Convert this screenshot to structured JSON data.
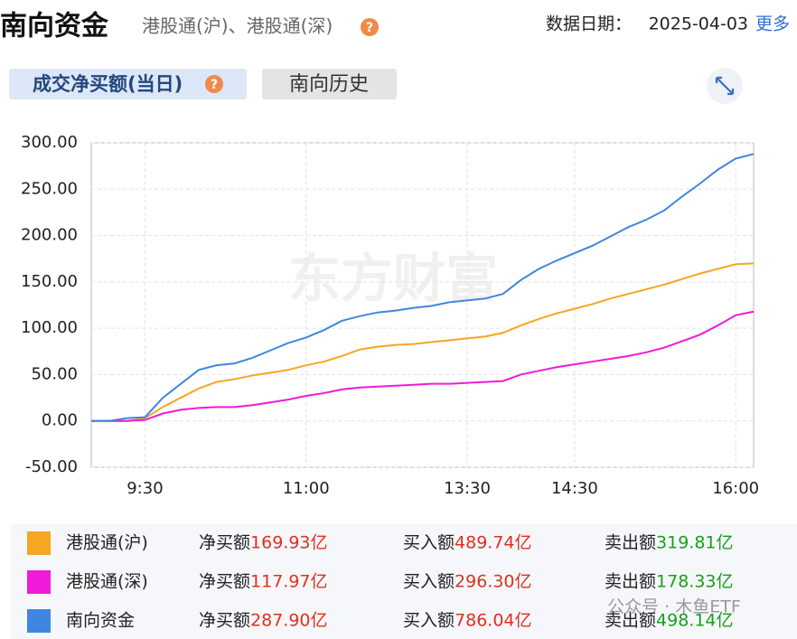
{
  "chart_data": {
    "type": "line",
    "title": "南向资金",
    "subtitle": "港股通(沪)、港股通(深)",
    "date_label": "数据日期：",
    "date": "2025-04-03",
    "more": "更多",
    "tabs": [
      "成交净买额(当日)",
      "南向历史"
    ],
    "watermark": "东方财富",
    "overlay_text": "公众号 · 木鱼ETF",
    "x": [
      "9:00",
      "9:10",
      "9:20",
      "9:30",
      "9:40",
      "9:50",
      "10:00",
      "10:10",
      "10:20",
      "10:30",
      "10:40",
      "10:50",
      "11:00",
      "11:10",
      "11:20",
      "11:30",
      "11:40",
      "11:50",
      "12:00",
      "13:10",
      "13:20",
      "13:30",
      "13:40",
      "13:50",
      "14:00",
      "14:10",
      "14:20",
      "14:30",
      "14:40",
      "14:50",
      "15:00",
      "15:10",
      "15:20",
      "15:30",
      "15:40",
      "15:50",
      "16:00",
      "16:10"
    ],
    "xlim": [
      "9:00",
      "16:10"
    ],
    "xticks": [
      "9:30",
      "11:00",
      "13:30",
      "14:30",
      "16:00"
    ],
    "ylim": [
      -50,
      300
    ],
    "yticks": [
      {
        "value": -50,
        "label": "-50.00"
      },
      {
        "value": 0,
        "label": "0.00"
      },
      {
        "value": 50,
        "label": "50.00"
      },
      {
        "value": 100,
        "label": "100.00"
      },
      {
        "value": 150,
        "label": "150.00"
      },
      {
        "value": 200,
        "label": "200.00"
      },
      {
        "value": 250,
        "label": "250.00"
      },
      {
        "value": 300,
        "label": "300.00"
      }
    ],
    "grid": true,
    "summary_labels": [
      "净买额",
      "买入额",
      "卖出额"
    ],
    "series": [
      {
        "name": "港股通(沪)",
        "color": "#f5a623",
        "values": [
          0,
          0,
          0,
          3,
          15,
          25,
          35,
          42,
          45,
          49,
          52,
          55,
          60,
          64,
          70,
          77,
          80,
          82,
          83,
          85,
          87,
          89,
          91,
          95,
          103,
          110,
          116,
          121,
          126,
          132,
          137,
          142,
          147,
          153,
          159,
          164,
          169,
          169.93
        ],
        "summary": [
          "169.93亿",
          "489.74亿",
          "319.81亿"
        ]
      },
      {
        "name": "港股通(深)",
        "color": "#f01ad8",
        "values": [
          0,
          0,
          0,
          1,
          8,
          12,
          14,
          15,
          15,
          17,
          20,
          23,
          27,
          30,
          34,
          36,
          37,
          38,
          39,
          40,
          40,
          41,
          42,
          43,
          50,
          54,
          58,
          61,
          64,
          67,
          70,
          74,
          79,
          86,
          93,
          103,
          114,
          117.97
        ],
        "summary": [
          "117.97亿",
          "296.30亿",
          "178.33亿"
        ]
      },
      {
        "name": "南向资金",
        "color": "#3f86e0",
        "values": [
          0,
          0,
          3,
          4,
          25,
          40,
          55,
          60,
          62,
          68,
          76,
          84,
          90,
          98,
          108,
          113,
          117,
          119,
          122,
          124,
          128,
          130,
          132,
          137,
          152,
          164,
          173,
          181,
          189,
          199,
          209,
          217,
          227,
          242,
          256,
          271,
          283,
          287.9
        ],
        "summary": [
          "287.90亿",
          "786.04亿",
          "498.14亿"
        ]
      }
    ]
  }
}
